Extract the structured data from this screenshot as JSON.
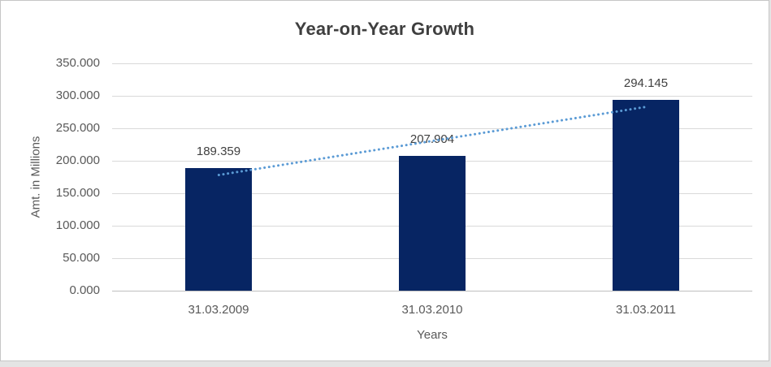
{
  "chart_data": {
    "type": "bar",
    "title": "Year-on-Year Growth",
    "xlabel": "Years",
    "ylabel": "Amt. in Millions",
    "categories": [
      "31.03.2009",
      "31.03.2010",
      "31.03.2011"
    ],
    "values": [
      189.359,
      207.904,
      294.145
    ],
    "value_labels": [
      "189.359",
      "207.904",
      "294.145"
    ],
    "y_ticks": [
      {
        "value": 0,
        "label": "0.000"
      },
      {
        "value": 50,
        "label": "50.000"
      },
      {
        "value": 100,
        "label": "100.000"
      },
      {
        "value": 150,
        "label": "150.000"
      },
      {
        "value": 200,
        "label": "200.000"
      },
      {
        "value": 250,
        "label": "250.000"
      },
      {
        "value": 300,
        "label": "300.000"
      },
      {
        "value": 350,
        "label": "350.000"
      }
    ],
    "ylim": [
      0,
      350
    ],
    "grid": true,
    "legend": "none",
    "trendline": {
      "type": "linear",
      "style": "dotted"
    },
    "colors": {
      "bar": "#072563",
      "trendline": "#5b9bd5",
      "gridline": "#d9d9d9",
      "axis_line": "#bfbfbf",
      "title_text": "#3f3f3f",
      "axis_text": "#595959",
      "label_text": "#404040"
    }
  }
}
